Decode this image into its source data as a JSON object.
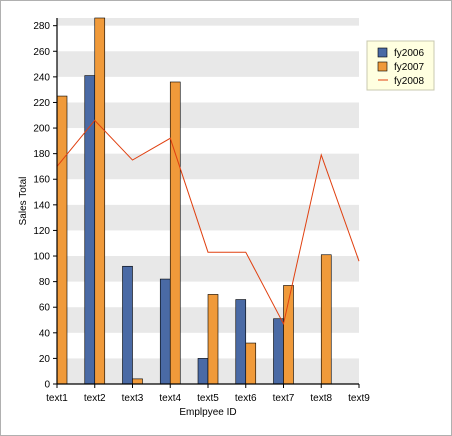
{
  "chart_data": {
    "type": "bar",
    "categories": [
      "text1",
      "text2",
      "text3",
      "text4",
      "text5",
      "text6",
      "text7",
      "text8",
      "text9"
    ],
    "series": [
      {
        "name": "fy2006",
        "kind": "bar",
        "color": "#4a6aa5",
        "values": [
          0,
          241,
          92,
          82,
          20,
          66,
          51,
          0,
          null
        ]
      },
      {
        "name": "fy2007",
        "kind": "bar",
        "color": "#f09a3a",
        "values": [
          225,
          286,
          4,
          236,
          70,
          32,
          77,
          101,
          null
        ]
      },
      {
        "name": "fy2008",
        "kind": "line",
        "color": "#e04010",
        "values": [
          170,
          206,
          175,
          192,
          103,
          103,
          47,
          179,
          96
        ]
      }
    ],
    "ylabel": "Sales Total",
    "xlabel": "Emplpyee ID",
    "ylim": [
      0,
      286
    ],
    "yticks": [
      0,
      20,
      40,
      60,
      80,
      100,
      120,
      140,
      160,
      180,
      200,
      220,
      240,
      260,
      280
    ],
    "grid": "alternating horizontal bands",
    "legend": "top-right",
    "colors": {
      "band": "#e8e8e8",
      "axis": "#000000",
      "legend_bg": "#ffffe0"
    }
  }
}
